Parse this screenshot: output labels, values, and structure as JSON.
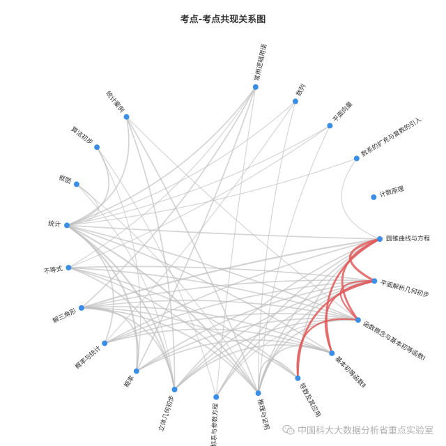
{
  "chart_data": {
    "type": "chord",
    "title": "考点-考点共现关系图",
    "node_color": "#3a8ee6",
    "link_color": "#bdbdbd",
    "highlight_color": "#e05c5c",
    "nodes": [
      "常用逻辑用语",
      "数列",
      "平面向量",
      "数系的扩充与复数的引入",
      "计数原理",
      "圆锥曲线与方程",
      "平面解析几何初步",
      "函数概念与基本初等函数Ⅰ",
      "基本初等函数Ⅱ",
      "导数及其应用",
      "推理与证明",
      "坐标系与参数方程",
      "立体几何初步",
      "概率",
      "概率与统计",
      "解三角形",
      "不等式",
      "统计",
      "框图",
      "算法初步",
      "统计案例"
    ],
    "links": [
      {
        "source": "圆锥曲线与方程",
        "target": "平面解析几何初步",
        "weight": 5,
        "highlight": true
      },
      {
        "source": "圆锥曲线与方程",
        "target": "函数概念与基本初等函数Ⅰ",
        "weight": 4,
        "highlight": true
      },
      {
        "source": "圆锥曲线与方程",
        "target": "基本初等函数Ⅱ",
        "weight": 4,
        "highlight": true
      },
      {
        "source": "平面解析几何初步",
        "target": "基本初等函数Ⅱ",
        "weight": 3,
        "highlight": true
      },
      {
        "source": "平面解析几何初步",
        "target": "函数概念与基本初等函数Ⅰ",
        "weight": 3,
        "highlight": true
      },
      {
        "source": "平面解析几何初步",
        "target": "导数及其应用",
        "weight": 4,
        "highlight": true
      },
      {
        "source": "函数概念与基本初等函数Ⅰ",
        "target": "导数及其应用",
        "weight": 3,
        "highlight": true
      },
      {
        "source": "统计",
        "target": "概率",
        "weight": 3
      },
      {
        "source": "统计",
        "target": "立体几何初步",
        "weight": 3
      },
      {
        "source": "统计",
        "target": "推理与证明",
        "weight": 3
      },
      {
        "source": "统计",
        "target": "基本初等函数Ⅱ",
        "weight": 2
      },
      {
        "source": "统计",
        "target": "圆锥曲线与方程",
        "weight": 2
      },
      {
        "source": "统计",
        "target": "函数概念与基本初等函数Ⅰ",
        "weight": 2
      },
      {
        "source": "统计",
        "target": "框图",
        "weight": 1
      },
      {
        "source": "统计",
        "target": "算法初步",
        "weight": 2
      },
      {
        "source": "统计",
        "target": "统计案例",
        "weight": 2
      },
      {
        "source": "解三角形",
        "target": "圆锥曲线与方程",
        "weight": 3
      },
      {
        "source": "解三角形",
        "target": "平面解析几何初步",
        "weight": 2
      },
      {
        "source": "解三角形",
        "target": "函数概念与基本初等函数Ⅰ",
        "weight": 2
      },
      {
        "source": "解三角形",
        "target": "基本初等函数Ⅱ",
        "weight": 2
      },
      {
        "source": "解三角形",
        "target": "导数及其应用",
        "weight": 2
      },
      {
        "source": "解三角形",
        "target": "立体几何初步",
        "weight": 2
      },
      {
        "source": "解三角形",
        "target": "概率",
        "weight": 2
      },
      {
        "source": "解三角形",
        "target": "推理与证明",
        "weight": 2
      },
      {
        "source": "不等式",
        "target": "立体几何初步",
        "weight": 2
      },
      {
        "source": "不等式",
        "target": "推理与证明",
        "weight": 2
      },
      {
        "source": "不等式",
        "target": "平面解析几何初步",
        "weight": 2
      },
      {
        "source": "不等式",
        "target": "导数及其应用",
        "weight": 2
      },
      {
        "source": "不等式",
        "target": "函数概念与基本初等函数Ⅰ",
        "weight": 2
      },
      {
        "source": "概率与统计",
        "target": "圆锥曲线与方程",
        "weight": 2
      },
      {
        "source": "概率与统计",
        "target": "平面解析几何初步",
        "weight": 2
      },
      {
        "source": "概率与统计",
        "target": "函数概念与基本初等函数Ⅰ",
        "weight": 2
      },
      {
        "source": "概率与统计",
        "target": "基本初等函数Ⅱ",
        "weight": 2
      },
      {
        "source": "概率与统计",
        "target": "统计",
        "weight": 2
      },
      {
        "source": "概率",
        "target": "平面解析几何初步",
        "weight": 2
      },
      {
        "source": "概率",
        "target": "函数概念与基本初等函数Ⅰ",
        "weight": 2
      },
      {
        "source": "概率",
        "target": "基本初等函数Ⅱ",
        "weight": 2
      },
      {
        "source": "立体几何初步",
        "target": "圆锥曲线与方程",
        "weight": 2
      },
      {
        "source": "立体几何初步",
        "target": "平面解析几何初步",
        "weight": 2
      },
      {
        "source": "立体几何初步",
        "target": "基本初等函数Ⅱ",
        "weight": 2
      },
      {
        "source": "立体几何初步",
        "target": "函数概念与基本初等函数Ⅰ",
        "weight": 2
      },
      {
        "source": "坐标系与参数方程",
        "target": "平面解析几何初步",
        "weight": 2
      },
      {
        "source": "坐标系与参数方程",
        "target": "圆锥曲线与方程",
        "weight": 2
      },
      {
        "source": "坐标系与参数方程",
        "target": "函数概念与基本初等函数Ⅰ",
        "weight": 1
      },
      {
        "source": "推理与证明",
        "target": "圆锥曲线与方程",
        "weight": 2
      },
      {
        "source": "推理与证明",
        "target": "平面解析几何初步",
        "weight": 2
      },
      {
        "source": "推理与证明",
        "target": "函数概念与基本初等函数Ⅰ",
        "weight": 2
      },
      {
        "source": "推理与证明",
        "target": "导数及其应用",
        "weight": 2
      },
      {
        "source": "统计案例",
        "target": "立体几何初步",
        "weight": 2
      },
      {
        "source": "统计案例",
        "target": "推理与证明",
        "weight": 2
      },
      {
        "source": "统计案例",
        "target": "函数概念与基本初等函数Ⅰ",
        "weight": 1
      },
      {
        "source": "算法初步",
        "target": "概率",
        "weight": 1
      },
      {
        "source": "算法初步",
        "target": "坐标系与参数方程",
        "weight": 1
      },
      {
        "source": "框图",
        "target": "立体几何初步",
        "weight": 1
      },
      {
        "source": "框图",
        "target": "推理与证明",
        "weight": 1
      },
      {
        "source": "常用逻辑用语",
        "target": "统计",
        "weight": 2
      },
      {
        "source": "常用逻辑用语",
        "target": "解三角形",
        "weight": 2
      },
      {
        "source": "常用逻辑用语",
        "target": "概率",
        "weight": 2
      },
      {
        "source": "常用逻辑用语",
        "target": "坐标系与参数方程",
        "weight": 1
      },
      {
        "source": "常用逻辑用语",
        "target": "不等式",
        "weight": 1
      },
      {
        "source": "数列",
        "target": "统计",
        "weight": 1
      },
      {
        "source": "数列",
        "target": "推理与证明",
        "weight": 1
      },
      {
        "source": "数列",
        "target": "概率与统计",
        "weight": 1
      },
      {
        "source": "平面向量",
        "target": "不等式",
        "weight": 1
      },
      {
        "source": "平面向量",
        "target": "推理与证明",
        "weight": 1
      },
      {
        "source": "平面向量",
        "target": "统计",
        "weight": 1
      },
      {
        "source": "数系的扩充与复数的引入",
        "target": "统计",
        "weight": 1
      },
      {
        "source": "数系的扩充与复数的引入",
        "target": "圆锥曲线与方程",
        "weight": 1
      },
      {
        "source": "圆锥曲线与方程",
        "target": "导数及其应用",
        "weight": 2
      },
      {
        "source": "基本初等函数Ⅱ",
        "target": "推理与证明",
        "weight": 2
      }
    ]
  },
  "watermark": {
    "text": "中国科大大数据分析省重点实验室",
    "icon": "wechat-icon"
  }
}
